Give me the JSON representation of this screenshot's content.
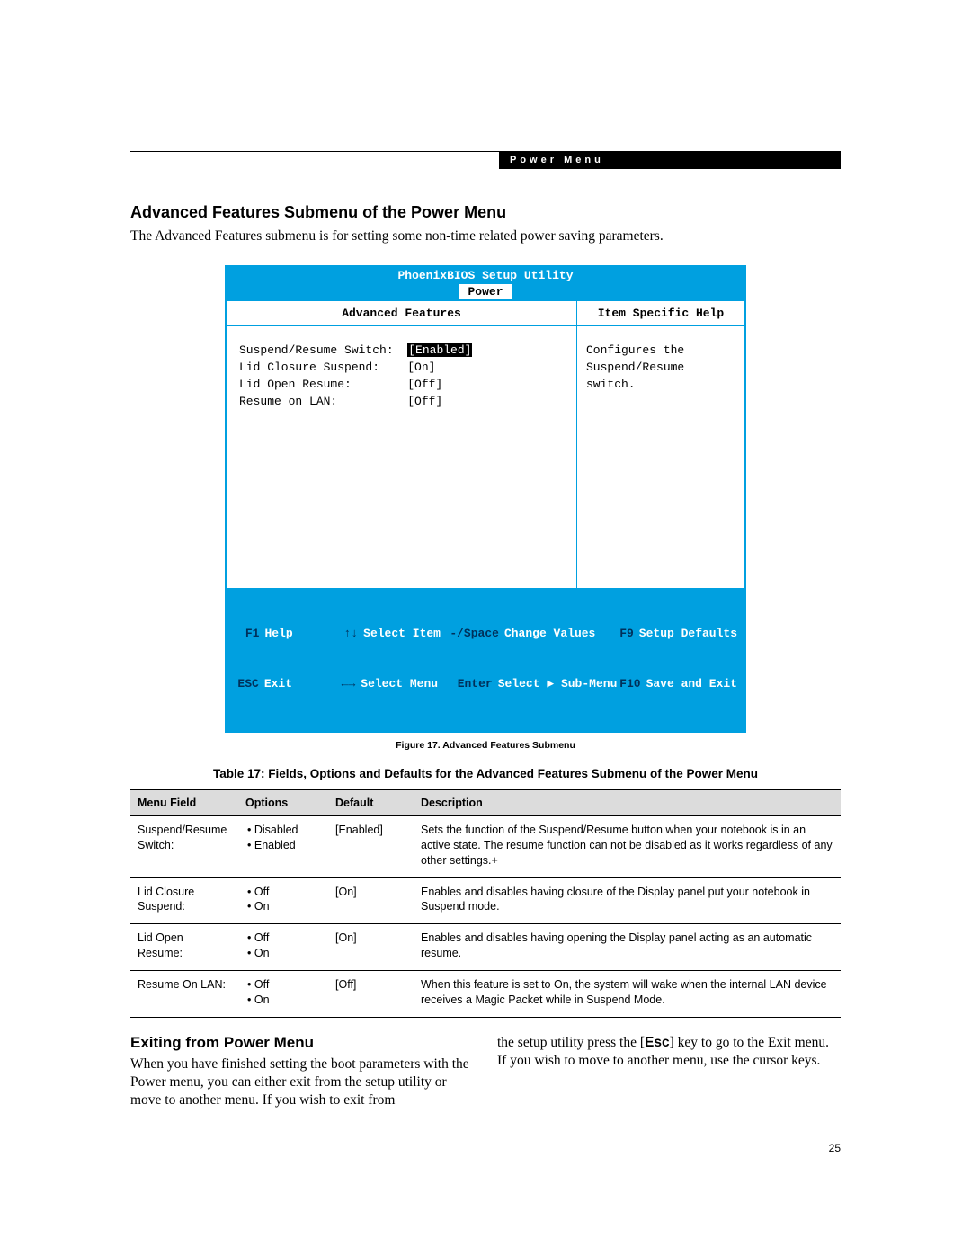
{
  "header": {
    "label": "Power Menu"
  },
  "section1": {
    "heading": "Advanced Features Submenu of the Power Menu",
    "intro": "The Advanced Features submenu is for setting some non-time related power saving parameters."
  },
  "bios": {
    "title": "PhoenixBIOS Setup Utility",
    "tab": "Power",
    "left_header": "Advanced Features",
    "right_header": "Item Specific Help",
    "settings": [
      {
        "label": "Suspend/Resume Switch:",
        "value": "[Enabled]",
        "selected": true
      },
      {
        "label": "Lid Closure Suspend:",
        "value": "[On]",
        "selected": false
      },
      {
        "label": "Lid Open Resume:",
        "value": "[Off]",
        "selected": false
      },
      {
        "label": "Resume on LAN:",
        "value": "[Off]",
        "selected": false
      }
    ],
    "help_text": "Configures the Suspend/Resume switch.",
    "footer": {
      "r1": {
        "k1": "F1",
        "v1": "Help",
        "k2": "↑↓",
        "v2": "Select Item",
        "k3": "-/Space",
        "v3": "Change Values",
        "k4": "F9",
        "v4": "Setup Defaults"
      },
      "r2": {
        "k1": "ESC",
        "v1": "Exit",
        "k2": "←→",
        "v2": "Select Menu",
        "k3": "Enter",
        "v3": "Select ▶ Sub-Menu",
        "k4": "F10",
        "v4": "Save and Exit"
      }
    }
  },
  "figure_caption": "Figure 17.  Advanced Features Submenu",
  "table": {
    "title": "Table 17: Fields, Options and Defaults for the Advanced Features Submenu of the Power Menu",
    "columns": {
      "c1": "Menu Field",
      "c2": "Options",
      "c3": "Default",
      "c4": "Description"
    },
    "rows": [
      {
        "field": "Suspend/Resume Switch:",
        "options": [
          "Disabled",
          "Enabled"
        ],
        "default": "[Enabled]",
        "desc": "Sets the function of the Suspend/Resume button when your notebook is in an active state. The resume function can not be disabled as it works regardless of any other settings.+"
      },
      {
        "field": "Lid Closure Suspend:",
        "options": [
          "Off",
          "On"
        ],
        "default": "[On]",
        "desc": "Enables and disables having closure of the Display panel put your notebook in Suspend mode."
      },
      {
        "field": "Lid Open Resume:",
        "options": [
          "Off",
          "On"
        ],
        "default": "[On]",
        "desc": "Enables and disables having opening the Display panel acting as an automatic resume."
      },
      {
        "field": "Resume On LAN:",
        "options": [
          "Off",
          "On"
        ],
        "default": "[Off]",
        "desc": "When this feature is set to On, the system will wake when the internal LAN device receives a Magic Packet while in Suspend Mode."
      }
    ]
  },
  "section2": {
    "heading": "Exiting from Power Menu",
    "left_para": "When you have finished setting the boot parameters with the Power menu, you can either exit from the setup utility or move to another menu. If you wish to exit from",
    "right_para_pre": "the setup utility press the [",
    "right_key": "Esc",
    "right_para_post": "] key to go to the Exit menu. If you wish to move to another menu, use the cursor keys."
  },
  "page_number": "25",
  "colors": {
    "bios_blue": "#00a0e0",
    "bios_dark": "#00305a",
    "table_header_bg": "#dcdcdc"
  }
}
